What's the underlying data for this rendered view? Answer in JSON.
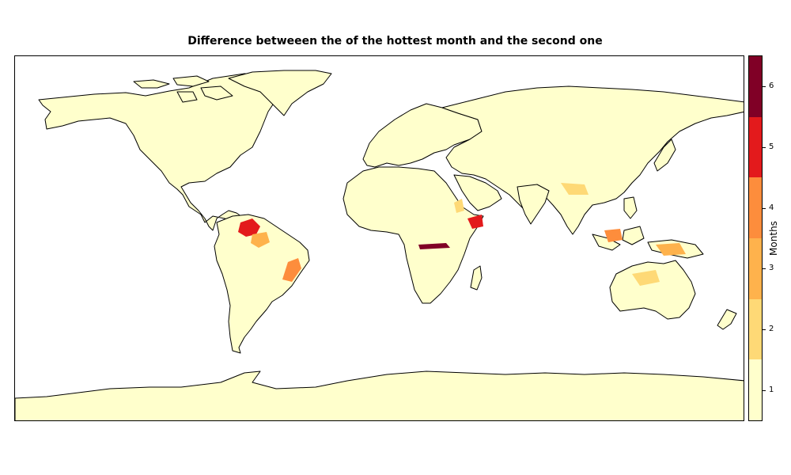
{
  "title": "Difference betweeen the of the hottest month and the second one",
  "colorbar": {
    "label": "Months",
    "ticks": [
      "1",
      "2",
      "3",
      "4",
      "5",
      "6"
    ],
    "levels": [
      {
        "value": 1,
        "color": "#ffffcc"
      },
      {
        "value": 2,
        "color": "#fed976"
      },
      {
        "value": 3,
        "color": "#feb24c"
      },
      {
        "value": 4,
        "color": "#fd8d3c"
      },
      {
        "value": 5,
        "color": "#e31a1c"
      },
      {
        "value": 6,
        "color": "#800026"
      }
    ]
  },
  "map": {
    "land_color": "#ffffcc",
    "ocean_color": "#ffffff",
    "coastline_color": "#000000"
  }
}
